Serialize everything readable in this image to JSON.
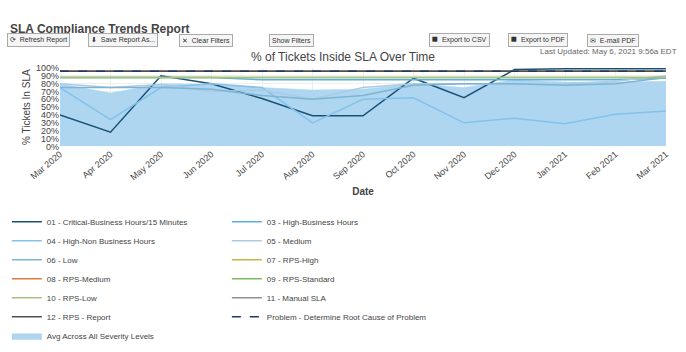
{
  "chart_data": {
    "type": "line",
    "title": "% of Tickets Inside SLA Over Time",
    "subtitle": "SLA Compliance Trends Report",
    "annotations": [
      "⟳  Refresh Report",
      "⬇  Save Report As...",
      "✕  Clear Filters",
      "Show Filters",
      "⯀  Export to CSV",
      "⯀  Export to PDF",
      "✉  E-mail PDF",
      "Last Updated: May 6, 2021 9:56a EDT"
    ],
    "xlabel": "Date",
    "ylabel": "% Tickets In SLA",
    "categories": [
      "Mar 2020",
      "Apr 2020",
      "May 2020",
      "Jun 2020",
      "Jul 2020",
      "Aug 2020",
      "Sep 2020",
      "Oct 2020",
      "Nov 2020",
      "Dec 2020",
      "Jan 2021",
      "Feb 2021",
      "Mar 2021"
    ],
    "ylim": [
      0,
      100
    ],
    "yticks": [
      {
        "value": 0,
        "label": "0%"
      },
      {
        "value": 10,
        "label": "10%"
      },
      {
        "value": 20,
        "label": "20%"
      },
      {
        "value": 30,
        "label": "30%"
      },
      {
        "value": 40,
        "label": "40%"
      },
      {
        "value": 50,
        "label": "50%"
      },
      {
        "value": 60,
        "label": "60%"
      },
      {
        "value": 70,
        "label": "70%"
      },
      {
        "value": 80,
        "label": "80%"
      },
      {
        "value": 90,
        "label": "90%"
      },
      {
        "value": 100,
        "label": "100%"
      }
    ],
    "grid": true,
    "legend": "bottom",
    "series": [
      {
        "name": "01 - Critical-Business Hours/15 Minutes",
        "color": "#1a5276",
        "line_style": "solid",
        "values": [
          40,
          18,
          90,
          80,
          61,
          39,
          39,
          87,
          62,
          98,
          99,
          99,
          99
        ]
      },
      {
        "name": "03 - High-Business Hours",
        "color": "#5dade2",
        "line_style": "solid",
        "values": [
          88,
          88,
          88,
          88,
          85,
          85,
          85,
          85,
          85,
          85,
          85,
          85,
          87
        ]
      },
      {
        "name": "04 - High-Non Business Hours",
        "color": "#85c1e9",
        "line_style": "solid",
        "values": [
          75,
          34,
          75,
          80,
          75,
          30,
          60,
          62,
          30,
          36,
          29,
          41,
          45
        ]
      },
      {
        "name": "05 - Medium",
        "color": "#a9cce3",
        "line_style": "solid",
        "values": [
          80,
          75,
          79,
          70,
          72,
          60,
          75,
          80,
          80,
          79,
          80,
          83,
          90
        ]
      },
      {
        "name": "06 - Low",
        "color": "#7fb3d3",
        "line_style": "solid",
        "values": [
          75,
          75,
          75,
          73,
          65,
          60,
          65,
          78,
          80,
          80,
          78,
          80,
          88
        ]
      },
      {
        "name": "07 - RPS-High",
        "color": "#c8b44a",
        "line_style": "solid",
        "values": [
          96,
          96,
          96,
          96,
          96,
          96,
          96,
          96,
          96,
          96,
          96,
          96,
          96
        ]
      },
      {
        "name": "08 - RPS-Medium",
        "color": "#e07b39",
        "line_style": "solid",
        "values": [
          96,
          96,
          96,
          96,
          96,
          96,
          96,
          96,
          96,
          96,
          96,
          96,
          96
        ]
      },
      {
        "name": "09 - RPS-Standard",
        "color": "#7dbb5e",
        "line_style": "solid",
        "values": [
          88,
          88,
          88,
          88,
          88,
          88,
          88,
          88,
          88,
          88,
          88,
          88,
          88
        ]
      },
      {
        "name": "10 - RPS-Low",
        "color": "#a8c080",
        "line_style": "solid",
        "values": [
          88,
          88,
          88,
          88,
          88,
          88,
          88,
          88,
          88,
          88,
          88,
          88,
          88
        ]
      },
      {
        "name": "11 - Manual SLA",
        "color": "#909090",
        "line_style": "solid",
        "values": [
          96,
          96,
          96,
          96,
          96,
          96,
          96,
          96,
          96,
          96,
          96,
          96,
          96
        ]
      },
      {
        "name": "12 - RPS - Report",
        "color": "#505050",
        "line_style": "solid",
        "values": [
          96,
          96,
          96,
          96,
          96,
          96,
          96,
          96,
          96,
          96,
          96,
          96,
          96
        ]
      },
      {
        "name": "Problem - Determine Root Cause of Problem",
        "color": "#1a3a6c",
        "line_style": "dashed",
        "values": [
          96,
          96,
          96,
          96,
          96,
          96,
          96,
          96,
          96,
          96,
          96,
          96,
          96
        ]
      },
      {
        "name": "Avg Across All Severity Levels",
        "type": "area",
        "color": "#aed6f1",
        "values": [
          80,
          68,
          80,
          79,
          75,
          72,
          73,
          80,
          75,
          85,
          82,
          82,
          83
        ]
      }
    ]
  }
}
